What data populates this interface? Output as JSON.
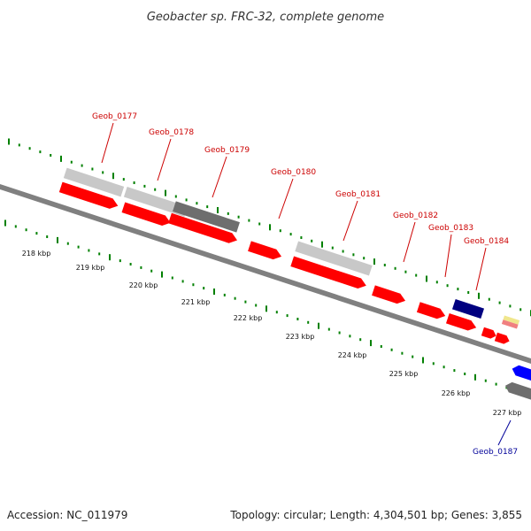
{
  "title": "Geobacter sp. FRC-32, complete genome",
  "footer": {
    "accession": "Accession: NC_011979",
    "summary": "Topology: circular; Length: 4,304,501 bp; Genes: 3,855"
  },
  "colors": {
    "red_feature": "#ff0000",
    "light_grey_feature": "#c8c8c8",
    "dark_grey_feature": "#6e6e6e",
    "navy_feature": "#000080",
    "blue_feature": "#0000ff",
    "green_feature": "#33cc33",
    "orange_feature": "#ff9900",
    "tick_green": "#008000",
    "label_red": "#cc0000",
    "label_blue": "#000099",
    "backbone": "#808080"
  },
  "kbp_labels": [
    "218 kbp",
    "219 kbp",
    "220 kbp",
    "221 kbp",
    "222 kbp",
    "223 kbp",
    "224 kbp",
    "225 kbp",
    "226 kbp",
    "227 kbp"
  ],
  "gene_labels": [
    {
      "text": "Geob_0177",
      "color": "red"
    },
    {
      "text": "Geob_0178",
      "color": "red"
    },
    {
      "text": "Geob_0179",
      "color": "red"
    },
    {
      "text": "Geob_0180",
      "color": "red"
    },
    {
      "text": "Geob_0181",
      "color": "red"
    },
    {
      "text": "Geob_0182",
      "color": "red"
    },
    {
      "text": "Geob_0183",
      "color": "red"
    },
    {
      "text": "Geob_0184",
      "color": "red"
    },
    {
      "text": "Geob_0187",
      "color": "blue"
    }
  ]
}
